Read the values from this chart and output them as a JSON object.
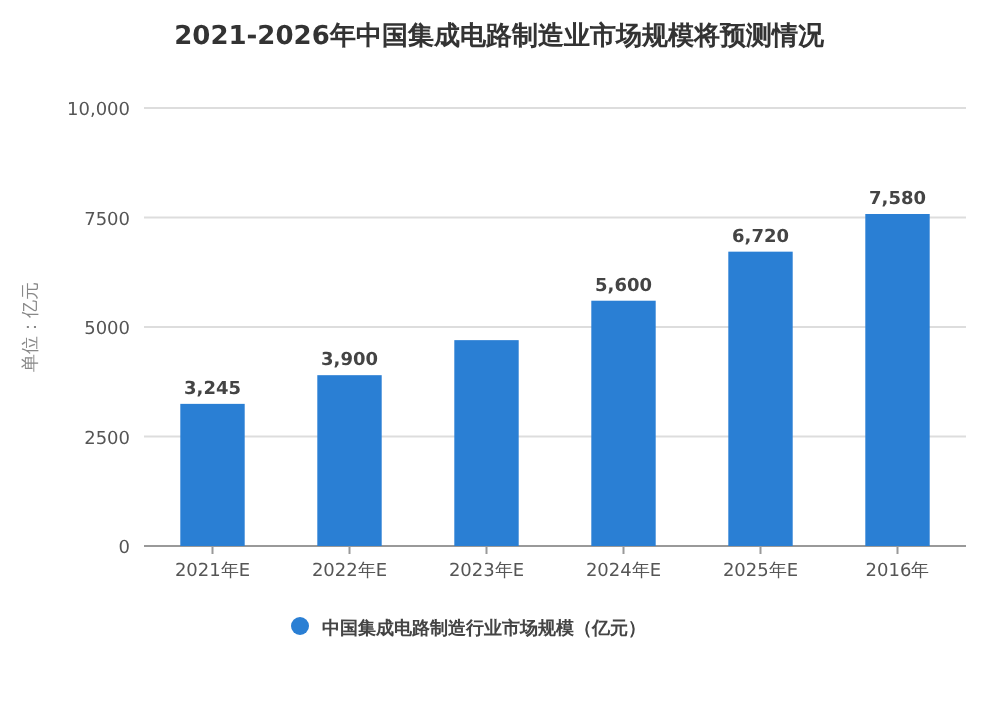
{
  "chart_data": {
    "type": "bar",
    "title": "2021-2026年中国集成电路制造业市场规模将预测情况",
    "ylabel": "单位：亿元",
    "categories": [
      "2021年E",
      "2022年E",
      "2023年E",
      "2024年E",
      "2025年E",
      "2016年"
    ],
    "series": [
      {
        "name": "中国集成电路制造行业市场规模（亿元）",
        "color": "#2a7fd4",
        "values": [
          3245,
          3900,
          4700,
          5600,
          6720,
          7580
        ],
        "value_labels": [
          "3,245",
          "3,900",
          null,
          "5,600",
          "6,720",
          "7,580"
        ]
      }
    ],
    "ylim": [
      0,
      10000
    ],
    "yticks": [
      0,
      2500,
      5000,
      7500,
      {
        "value": 10000,
        "label": "10,000"
      }
    ],
    "grid": "y",
    "legend": "bottom"
  }
}
